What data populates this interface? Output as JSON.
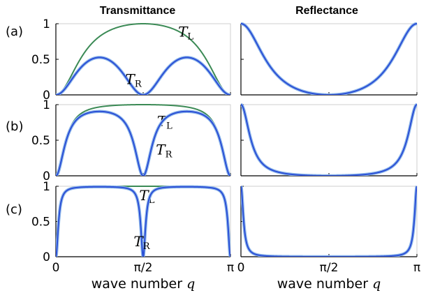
{
  "titles": {
    "left": "Transmittance",
    "right": "Reflectance"
  },
  "panel_labels": [
    "(a)",
    "(b)",
    "(c)"
  ],
  "y_ticks": [
    "0",
    "0.5",
    "1"
  ],
  "x_ticks": [
    "0",
    "π/2",
    "π"
  ],
  "x_axis_label": {
    "text": "wave number ",
    "var": "q"
  },
  "colors": {
    "T_L": "#3b8a55",
    "T_R": "#2b4fd6",
    "R": "#2b4fd6",
    "R_glow": "#8fb8ea",
    "axes": "#000000"
  },
  "chart_data": [
    {
      "type": "line",
      "panel": "(a)",
      "title": "Transmittance",
      "xlim": [
        0,
        3.14159
      ],
      "ylim": [
        0,
        1
      ],
      "xlabel": "",
      "ylabel": "",
      "series": [
        {
          "name": "T_L",
          "label_base": "T",
          "label_sub": "L",
          "label_pos": [
            2.2,
            0.82
          ],
          "kind": "TL",
          "p": 0.28
        },
        {
          "name": "T_R",
          "label_base": "T",
          "label_sub": "R",
          "label_pos": [
            1.25,
            0.15
          ],
          "kind": "TR",
          "p": 0.28
        }
      ]
    },
    {
      "type": "line",
      "panel": "(a)",
      "title": "Reflectance",
      "xlim": [
        0,
        3.14159
      ],
      "ylim": [
        0,
        1
      ],
      "xlabel": "",
      "ylabel": "",
      "series": [
        {
          "name": "R",
          "kind": "R",
          "p": 0.28
        }
      ]
    },
    {
      "type": "line",
      "panel": "(b)",
      "title": "",
      "xlim": [
        0,
        3.14159
      ],
      "ylim": [
        0,
        1
      ],
      "xlabel": "",
      "ylabel": "",
      "series": [
        {
          "name": "T_L",
          "label_base": "T",
          "label_sub": "L",
          "label_pos": [
            1.82,
            0.7
          ],
          "kind": "TL",
          "p": 0.035
        },
        {
          "name": "T_R",
          "label_base": "T",
          "label_sub": "R",
          "label_pos": [
            1.8,
            0.3
          ],
          "kind": "TR",
          "p": 0.035
        }
      ]
    },
    {
      "type": "line",
      "panel": "(b)",
      "title": "",
      "xlim": [
        0,
        3.14159
      ],
      "ylim": [
        0,
        1
      ],
      "xlabel": "",
      "ylabel": "",
      "series": [
        {
          "name": "R",
          "kind": "R",
          "p": 0.035
        }
      ]
    },
    {
      "type": "line",
      "panel": "(c)",
      "title": "",
      "xlim": [
        0,
        3.14159
      ],
      "ylim": [
        0,
        1
      ],
      "xlabel": "wave number q",
      "ylabel": "",
      "series": [
        {
          "name": "T_L",
          "label_base": "T",
          "label_sub": "L",
          "label_pos": [
            1.5,
            0.8
          ],
          "kind": "TL",
          "p": 0.0025
        },
        {
          "name": "T_R",
          "label_base": "T",
          "label_sub": "R",
          "label_pos": [
            1.4,
            0.15
          ],
          "kind": "TR",
          "p": 0.0025
        }
      ]
    },
    {
      "type": "line",
      "panel": "(c)",
      "title": "",
      "xlim": [
        0,
        3.14159
      ],
      "ylim": [
        0,
        1
      ],
      "xlabel": "wave number q",
      "ylabel": "",
      "series": [
        {
          "name": "R",
          "kind": "R",
          "p": 0.0025
        }
      ]
    }
  ]
}
